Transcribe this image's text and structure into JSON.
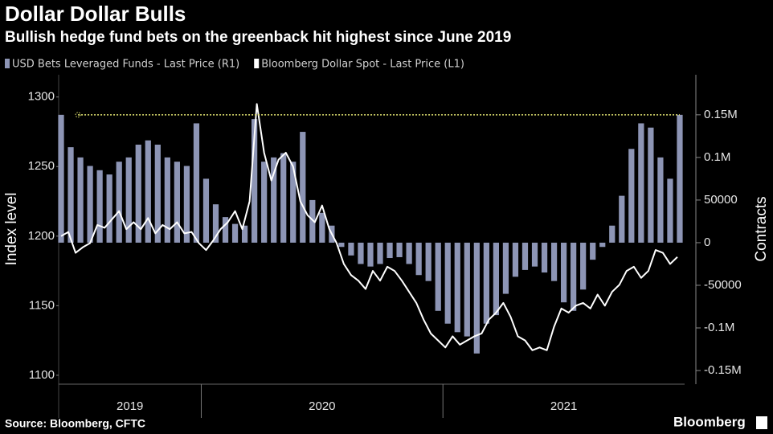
{
  "chart_data": {
    "type": "combo",
    "title": "Dollar Dollar Bulls",
    "subtitle": "Bullish hedge fund bets on the greenback hit highest since June 2019",
    "ylabel": "Index level",
    "y2label": "Contracts",
    "source": "Source: Bloomberg, CFTC",
    "brand": "Bloomberg",
    "xlim": [
      2019.41,
      2022.0
    ],
    "xticks": [
      {
        "value": 2019.705,
        "label": "2019"
      },
      {
        "value": 2020.5,
        "label": "2020"
      },
      {
        "value": 2021.5,
        "label": "2021"
      }
    ],
    "year_dividers": [
      2020,
      2021
    ],
    "ylim": [
      1093.6,
      1316
    ],
    "yticks": [
      1100,
      1150,
      1200,
      1250,
      1300
    ],
    "y2lim": [
      -166000,
      197000
    ],
    "y2ticks": [
      {
        "value": 150000,
        "label": "0.15M"
      },
      {
        "value": 100000,
        "label": "0.1M"
      },
      50000,
      0,
      -50000,
      {
        "value": -100000,
        "label": "-0.1M"
      },
      {
        "value": -150000,
        "label": "-0.15M"
      }
    ],
    "reference_line": {
      "axis": "y2",
      "y": 150000,
      "x": [
        2019.49,
        2021.98
      ],
      "color": "#e6e873"
    },
    "series": [
      {
        "name": "USD Bets Leveraged Funds - Last Price (R1)",
        "type": "bar",
        "axis": "y2",
        "color": "#8d95b5",
        "x": [
          2019.42,
          2019.46,
          2019.5,
          2019.54,
          2019.58,
          2019.62,
          2019.66,
          2019.7,
          2019.74,
          2019.78,
          2019.82,
          2019.86,
          2019.9,
          2019.94,
          2019.98,
          2020.02,
          2020.06,
          2020.1,
          2020.14,
          2020.18,
          2020.22,
          2020.26,
          2020.3,
          2020.34,
          2020.38,
          2020.42,
          2020.46,
          2020.5,
          2020.54,
          2020.58,
          2020.62,
          2020.66,
          2020.7,
          2020.74,
          2020.78,
          2020.82,
          2020.86,
          2020.9,
          2020.94,
          2020.98,
          2021.02,
          2021.06,
          2021.1,
          2021.14,
          2021.18,
          2021.22,
          2021.26,
          2021.3,
          2021.34,
          2021.38,
          2021.42,
          2021.46,
          2021.5,
          2021.54,
          2021.58,
          2021.62,
          2021.66,
          2021.7,
          2021.74,
          2021.78,
          2021.82,
          2021.86,
          2021.9,
          2021.94,
          2021.98
        ],
        "values": [
          150000,
          112000,
          100000,
          90000,
          85000,
          80000,
          95000,
          100000,
          115000,
          120000,
          115000,
          100000,
          95000,
          90000,
          140000,
          75000,
          45000,
          30000,
          22000,
          20000,
          145000,
          95000,
          100000,
          105000,
          95000,
          130000,
          50000,
          35000,
          20000,
          -5000,
          -15000,
          -25000,
          -28000,
          -25000,
          -18000,
          -17000,
          -25000,
          -38000,
          -45000,
          -80000,
          -95000,
          -105000,
          -110000,
          -130000,
          -95000,
          -85000,
          -60000,
          -40000,
          -32000,
          -28000,
          -35000,
          -45000,
          -70000,
          -80000,
          -55000,
          -20000,
          -5000,
          20000,
          55000,
          110000,
          140000,
          135000,
          100000,
          75000,
          150000
        ]
      },
      {
        "name": "Bloomberg Dollar Spot - Last Price (L1)",
        "type": "line",
        "axis": "y",
        "color": "#ffffff",
        "x": [
          2019.42,
          2019.45,
          2019.48,
          2019.51,
          2019.54,
          2019.57,
          2019.6,
          2019.63,
          2019.66,
          2019.69,
          2019.72,
          2019.75,
          2019.78,
          2019.81,
          2019.84,
          2019.87,
          2019.9,
          2019.93,
          2019.96,
          2019.99,
          2020.02,
          2020.05,
          2020.08,
          2020.11,
          2020.14,
          2020.17,
          2020.2,
          2020.23,
          2020.26,
          2020.29,
          2020.32,
          2020.35,
          2020.38,
          2020.41,
          2020.44,
          2020.47,
          2020.5,
          2020.53,
          2020.56,
          2020.59,
          2020.62,
          2020.65,
          2020.68,
          2020.71,
          2020.74,
          2020.77,
          2020.8,
          2020.83,
          2020.86,
          2020.89,
          2020.92,
          2020.95,
          2020.98,
          2021.01,
          2021.04,
          2021.07,
          2021.1,
          2021.13,
          2021.16,
          2021.19,
          2021.22,
          2021.25,
          2021.28,
          2021.31,
          2021.34,
          2021.37,
          2021.4,
          2021.43,
          2021.46,
          2021.49,
          2021.52,
          2021.55,
          2021.58,
          2021.61,
          2021.64,
          2021.67,
          2021.7,
          2021.73,
          2021.76,
          2021.79,
          2021.82,
          2021.85,
          2021.88,
          2021.91,
          2021.94,
          2021.97
        ],
        "values": [
          1200,
          1203,
          1188,
          1192,
          1195,
          1208,
          1206,
          1212,
          1218,
          1205,
          1210,
          1205,
          1213,
          1202,
          1208,
          1205,
          1210,
          1202,
          1203,
          1195,
          1190,
          1197,
          1205,
          1210,
          1218,
          1205,
          1225,
          1295,
          1260,
          1240,
          1255,
          1260,
          1250,
          1225,
          1215,
          1210,
          1222,
          1205,
          1195,
          1180,
          1172,
          1168,
          1162,
          1175,
          1168,
          1178,
          1175,
          1168,
          1160,
          1152,
          1140,
          1130,
          1125,
          1120,
          1128,
          1122,
          1125,
          1128,
          1130,
          1140,
          1145,
          1152,
          1142,
          1128,
          1125,
          1118,
          1120,
          1118,
          1135,
          1148,
          1145,
          1150,
          1152,
          1148,
          1158,
          1150,
          1160,
          1165,
          1175,
          1178,
          1170,
          1175,
          1190,
          1188,
          1180,
          1185
        ]
      }
    ]
  }
}
